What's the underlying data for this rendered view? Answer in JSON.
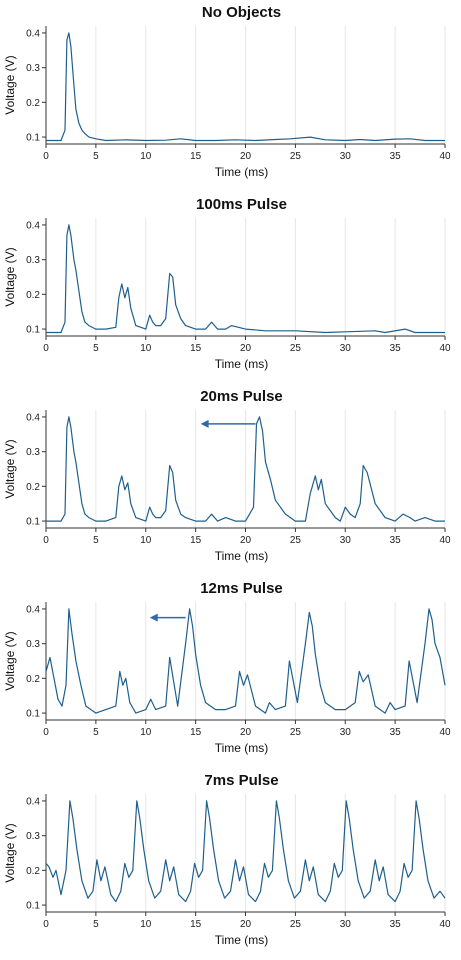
{
  "chart_data": [
    {
      "type": "line",
      "title": "No Objects",
      "xlabel": "Time (ms)",
      "ylabel": "Voltage (V)",
      "xlim": [
        0,
        40
      ],
      "ylim": [
        0.08,
        0.42
      ],
      "xticks": [
        0,
        5,
        10,
        15,
        20,
        25,
        30,
        35,
        40
      ],
      "yticks": [
        0.1,
        0.2,
        0.3,
        0.4
      ],
      "grid": "vertical",
      "color": "#1f5f8b",
      "series": [
        {
          "x": [
            0,
            1.5,
            1.9,
            2.1,
            2.3,
            2.5,
            2.8,
            3.0,
            3.3,
            3.6,
            3.9,
            4.3,
            5,
            6,
            8,
            10,
            12,
            13.5,
            15,
            17,
            19,
            21,
            23,
            24.5,
            26.5,
            28,
            30,
            31.5,
            33,
            35,
            36.5,
            38,
            40
          ],
          "y": [
            0.09,
            0.09,
            0.12,
            0.38,
            0.4,
            0.36,
            0.25,
            0.18,
            0.14,
            0.12,
            0.11,
            0.1,
            0.095,
            0.09,
            0.092,
            0.09,
            0.091,
            0.095,
            0.09,
            0.09,
            0.092,
            0.09,
            0.093,
            0.095,
            0.1,
            0.092,
            0.09,
            0.093,
            0.09,
            0.094,
            0.095,
            0.09,
            0.09
          ]
        }
      ]
    },
    {
      "type": "line",
      "title": "100ms Pulse",
      "xlabel": "Time (ms)",
      "ylabel": "Voltage (V)",
      "xlim": [
        0,
        40
      ],
      "ylim": [
        0.08,
        0.42
      ],
      "xticks": [
        0,
        5,
        10,
        15,
        20,
        25,
        30,
        35,
        40
      ],
      "yticks": [
        0.1,
        0.2,
        0.3,
        0.4
      ],
      "grid": "vertical",
      "color": "#1f5f8b",
      "series": [
        {
          "x": [
            0,
            1.5,
            1.9,
            2.1,
            2.3,
            2.5,
            2.8,
            3.0,
            3.3,
            3.6,
            3.9,
            4.3,
            5,
            6,
            7,
            7.3,
            7.6,
            7.9,
            8.2,
            8.5,
            9,
            10,
            10.4,
            10.7,
            11,
            11.5,
            12,
            12.4,
            12.7,
            13,
            13.5,
            14,
            15,
            16,
            16.6,
            17.2,
            18,
            18.6,
            19.3,
            20,
            22,
            25,
            28,
            30,
            33,
            34,
            36,
            37,
            40
          ],
          "y": [
            0.09,
            0.09,
            0.12,
            0.37,
            0.4,
            0.37,
            0.3,
            0.27,
            0.21,
            0.15,
            0.12,
            0.11,
            0.1,
            0.1,
            0.105,
            0.19,
            0.23,
            0.19,
            0.22,
            0.16,
            0.11,
            0.1,
            0.14,
            0.12,
            0.11,
            0.11,
            0.13,
            0.26,
            0.25,
            0.17,
            0.13,
            0.11,
            0.1,
            0.1,
            0.12,
            0.1,
            0.1,
            0.11,
            0.105,
            0.1,
            0.095,
            0.095,
            0.09,
            0.092,
            0.095,
            0.09,
            0.1,
            0.09,
            0.09
          ]
        }
      ]
    },
    {
      "type": "line",
      "title": "20ms Pulse",
      "xlabel": "Time (ms)",
      "ylabel": "Voltage (V)",
      "xlim": [
        0,
        40
      ],
      "ylim": [
        0.08,
        0.42
      ],
      "xticks": [
        0,
        5,
        10,
        15,
        20,
        25,
        30,
        35,
        40
      ],
      "yticks": [
        0.1,
        0.2,
        0.3,
        0.4
      ],
      "grid": "vertical",
      "color": "#1f5f8b",
      "arrow": {
        "from_x": 21,
        "to_x": 15.5,
        "y": 0.38
      },
      "series": [
        {
          "x": [
            0,
            1.5,
            1.9,
            2.1,
            2.3,
            2.5,
            2.8,
            3.0,
            3.3,
            3.6,
            3.9,
            4.3,
            5,
            6,
            7,
            7.3,
            7.6,
            7.9,
            8.2,
            8.5,
            9,
            10,
            10.4,
            10.7,
            11,
            11.5,
            12,
            12.4,
            12.7,
            13,
            13.5,
            14,
            15,
            16,
            16.6,
            17.2,
            18,
            19,
            20,
            20.8,
            21.1,
            21.4,
            21.7,
            22,
            22.5,
            23,
            24,
            25,
            26,
            26.5,
            27,
            27.3,
            27.6,
            28,
            29,
            29.5,
            30,
            30.5,
            31,
            31.5,
            31.8,
            32.2,
            33,
            34,
            35,
            35.8,
            36.5,
            37,
            38,
            39,
            40
          ],
          "y": [
            0.1,
            0.1,
            0.12,
            0.37,
            0.4,
            0.37,
            0.3,
            0.27,
            0.21,
            0.15,
            0.12,
            0.11,
            0.1,
            0.1,
            0.11,
            0.2,
            0.23,
            0.19,
            0.21,
            0.15,
            0.11,
            0.1,
            0.14,
            0.12,
            0.11,
            0.11,
            0.13,
            0.26,
            0.24,
            0.16,
            0.12,
            0.11,
            0.1,
            0.1,
            0.12,
            0.1,
            0.11,
            0.1,
            0.1,
            0.14,
            0.38,
            0.4,
            0.36,
            0.27,
            0.22,
            0.16,
            0.12,
            0.1,
            0.1,
            0.18,
            0.23,
            0.19,
            0.22,
            0.15,
            0.11,
            0.1,
            0.14,
            0.12,
            0.11,
            0.15,
            0.26,
            0.24,
            0.15,
            0.11,
            0.1,
            0.12,
            0.11,
            0.1,
            0.11,
            0.1,
            0.1
          ]
        }
      ]
    },
    {
      "type": "line",
      "title": "12ms Pulse",
      "xlabel": "Time (ms)",
      "ylabel": "Voltage (V)",
      "xlim": [
        0,
        40
      ],
      "ylim": [
        0.08,
        0.42
      ],
      "xticks": [
        0,
        5,
        10,
        15,
        20,
        25,
        30,
        35,
        40
      ],
      "yticks": [
        0.1,
        0.2,
        0.3,
        0.4
      ],
      "grid": "vertical",
      "color": "#1f5f8b",
      "arrow": {
        "from_x": 14,
        "to_x": 10.4,
        "y": 0.375
      },
      "series": [
        {
          "x": [
            0,
            0.4,
            0.8,
            1.2,
            1.6,
            2.0,
            2.3,
            2.6,
            3.0,
            3.5,
            4,
            5,
            6,
            7,
            7.4,
            7.7,
            8.0,
            8.4,
            9,
            10,
            10.5,
            11,
            12,
            12.4,
            12.8,
            13.2,
            14,
            14.4,
            14.7,
            15,
            15.5,
            16,
            17,
            18,
            19,
            19.4,
            19.8,
            20.2,
            21,
            22,
            22.4,
            23,
            24,
            24.4,
            24.8,
            25.2,
            26,
            26.4,
            26.7,
            27,
            27.5,
            28,
            29,
            30,
            31,
            31.4,
            31.8,
            32.3,
            33,
            34,
            34.5,
            35,
            36,
            36.4,
            36.8,
            37.2,
            38,
            38.4,
            38.7,
            39,
            39.5,
            40
          ],
          "y": [
            0.22,
            0.26,
            0.2,
            0.14,
            0.12,
            0.18,
            0.4,
            0.33,
            0.25,
            0.18,
            0.12,
            0.1,
            0.11,
            0.12,
            0.22,
            0.18,
            0.2,
            0.13,
            0.1,
            0.11,
            0.14,
            0.11,
            0.12,
            0.26,
            0.19,
            0.12,
            0.3,
            0.4,
            0.35,
            0.27,
            0.18,
            0.13,
            0.11,
            0.11,
            0.12,
            0.22,
            0.18,
            0.21,
            0.12,
            0.1,
            0.13,
            0.11,
            0.12,
            0.25,
            0.19,
            0.13,
            0.3,
            0.39,
            0.35,
            0.27,
            0.18,
            0.13,
            0.11,
            0.11,
            0.13,
            0.22,
            0.19,
            0.21,
            0.12,
            0.1,
            0.13,
            0.11,
            0.12,
            0.25,
            0.19,
            0.13,
            0.3,
            0.4,
            0.37,
            0.3,
            0.26,
            0.18
          ]
        }
      ]
    },
    {
      "type": "line",
      "title": "7ms Pulse",
      "xlabel": "Time (ms)",
      "ylabel": "Voltage (V)",
      "xlim": [
        0,
        40
      ],
      "ylim": [
        0.08,
        0.42
      ],
      "xticks": [
        0,
        5,
        10,
        15,
        20,
        25,
        30,
        35,
        40
      ],
      "yticks": [
        0.1,
        0.2,
        0.3,
        0.4
      ],
      "grid": "vertical",
      "color": "#1f5f8b",
      "series": [
        {
          "x": [
            0,
            0.3,
            0.7,
            1.0,
            1.5,
            2.0,
            2.4,
            2.7,
            3.1,
            3.6,
            4.2,
            4.7,
            5.1,
            5.5,
            5.9,
            6.5,
            7,
            7.5,
            7.9,
            8.3,
            8.7,
            9.1,
            9.4,
            9.8,
            10.3,
            10.9,
            11.5,
            12.0,
            12.4,
            12.8,
            13.3,
            14,
            14.5,
            14.9,
            15.3,
            15.7,
            16.1,
            16.4,
            16.8,
            17.3,
            17.9,
            18.5,
            19.0,
            19.4,
            19.8,
            20.3,
            21,
            21.5,
            21.9,
            22.3,
            22.7,
            23.1,
            23.4,
            23.8,
            24.3,
            24.9,
            25.5,
            26.0,
            26.4,
            26.8,
            27.3,
            28,
            28.5,
            28.9,
            29.3,
            29.7,
            30.1,
            30.4,
            30.8,
            31.3,
            31.9,
            32.5,
            33.0,
            33.4,
            33.8,
            34.3,
            35,
            35.5,
            35.9,
            36.3,
            36.7,
            37.1,
            37.4,
            37.8,
            38.3,
            38.9,
            39.5,
            40
          ],
          "y": [
            0.22,
            0.21,
            0.18,
            0.2,
            0.13,
            0.2,
            0.4,
            0.35,
            0.26,
            0.17,
            0.12,
            0.14,
            0.23,
            0.17,
            0.21,
            0.13,
            0.11,
            0.14,
            0.22,
            0.18,
            0.2,
            0.4,
            0.35,
            0.26,
            0.17,
            0.12,
            0.14,
            0.23,
            0.17,
            0.21,
            0.13,
            0.11,
            0.14,
            0.22,
            0.18,
            0.2,
            0.4,
            0.35,
            0.26,
            0.17,
            0.12,
            0.14,
            0.23,
            0.17,
            0.21,
            0.13,
            0.11,
            0.14,
            0.22,
            0.18,
            0.2,
            0.4,
            0.35,
            0.26,
            0.17,
            0.12,
            0.14,
            0.23,
            0.17,
            0.21,
            0.13,
            0.11,
            0.14,
            0.22,
            0.18,
            0.2,
            0.4,
            0.35,
            0.26,
            0.17,
            0.12,
            0.14,
            0.23,
            0.17,
            0.21,
            0.13,
            0.11,
            0.14,
            0.22,
            0.18,
            0.2,
            0.4,
            0.35,
            0.26,
            0.17,
            0.12,
            0.14,
            0.12
          ]
        }
      ]
    }
  ]
}
